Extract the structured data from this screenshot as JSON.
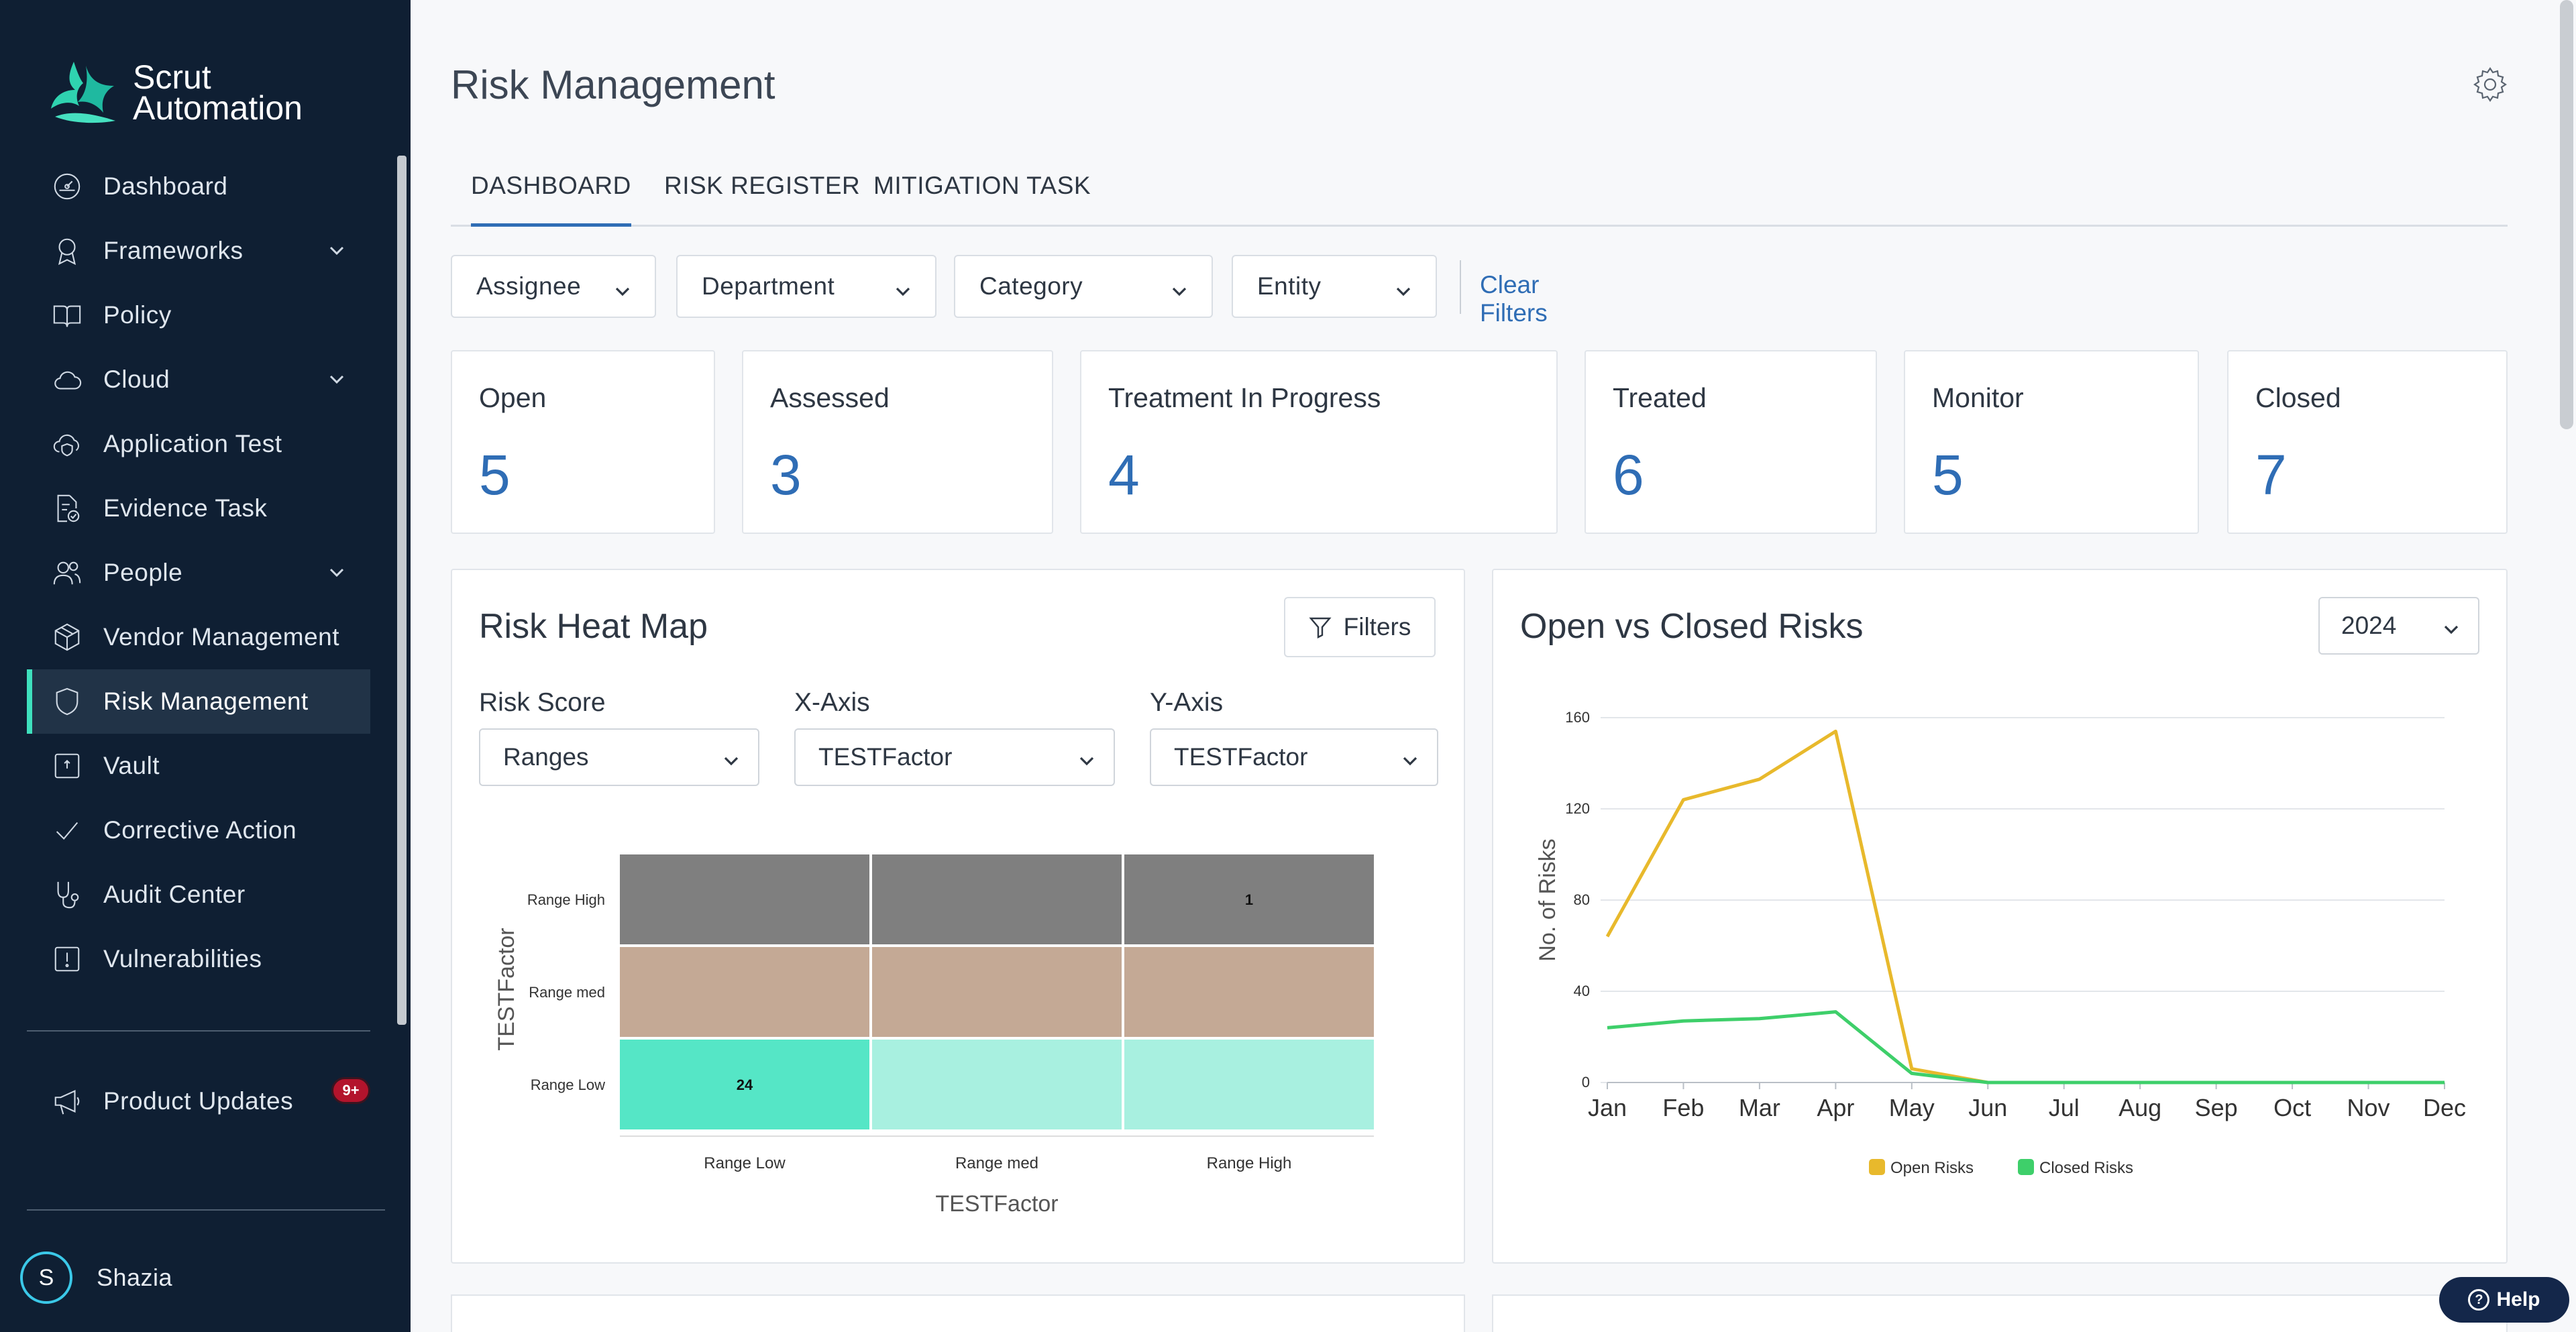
{
  "brand": {
    "line1": "Scrut",
    "line2": "Automation"
  },
  "sidebar": {
    "items": [
      {
        "label": "Dashboard",
        "icon": "dashboard-icon",
        "expandable": false,
        "active": false
      },
      {
        "label": "Frameworks",
        "icon": "award-icon",
        "expandable": true,
        "active": false
      },
      {
        "label": "Policy",
        "icon": "book-icon",
        "expandable": false,
        "active": false
      },
      {
        "label": "Cloud",
        "icon": "cloud-icon",
        "expandable": true,
        "active": false
      },
      {
        "label": "Application Test",
        "icon": "cloud-shield-icon",
        "expandable": false,
        "active": false
      },
      {
        "label": "Evidence Task",
        "icon": "file-check-icon",
        "expandable": false,
        "active": false
      },
      {
        "label": "People",
        "icon": "people-icon",
        "expandable": true,
        "active": false
      },
      {
        "label": "Vendor Management",
        "icon": "box-icon",
        "expandable": false,
        "active": false
      },
      {
        "label": "Risk Management",
        "icon": "shield-icon",
        "expandable": false,
        "active": true
      },
      {
        "label": "Vault",
        "icon": "vault-icon",
        "expandable": false,
        "active": false
      },
      {
        "label": "Corrective Action",
        "icon": "check-icon",
        "expandable": false,
        "active": false
      },
      {
        "label": "Audit Center",
        "icon": "stethoscope-icon",
        "expandable": false,
        "active": false
      },
      {
        "label": "Vulnerabilities",
        "icon": "alert-square-icon",
        "expandable": false,
        "active": false
      }
    ],
    "product_updates": {
      "label": "Product Updates",
      "badge": "9+"
    },
    "user": {
      "initial": "S",
      "name": "Shazia"
    }
  },
  "page": {
    "title": "Risk Management"
  },
  "tabs": [
    {
      "label": "DASHBOARD",
      "active": true
    },
    {
      "label": "RISK REGISTER",
      "active": false
    },
    {
      "label": "MITIGATION TASK",
      "active": false
    }
  ],
  "filters": {
    "assignee": "Assignee",
    "department": "Department",
    "category": "Category",
    "entity": "Entity",
    "clear": "Clear Filters"
  },
  "stats": [
    {
      "label": "Open",
      "value": "5"
    },
    {
      "label": "Assessed",
      "value": "3"
    },
    {
      "label": "Treatment In Progress",
      "value": "4"
    },
    {
      "label": "Treated",
      "value": "6"
    },
    {
      "label": "Monitor",
      "value": "5"
    },
    {
      "label": "Closed",
      "value": "7"
    }
  ],
  "heatmap": {
    "title": "Risk Heat Map",
    "filters_button": "Filters",
    "risk_score_label": "Risk Score",
    "risk_score_value": "Ranges",
    "x_axis_label": "X-Axis",
    "x_axis_value": "TESTFactor",
    "y_axis_label": "Y-Axis",
    "y_axis_value": "TESTFactor"
  },
  "line_chart": {
    "title": "Open vs Closed Risks",
    "year": "2024"
  },
  "chart_data": [
    {
      "type": "heatmap",
      "x_categories": [
        "Range Low",
        "Range med",
        "Range High"
      ],
      "y_categories": [
        "Range High",
        "Range med",
        "Range Low"
      ],
      "xlabel": "TESTFactor",
      "ylabel": "TESTFactor",
      "cells": [
        [
          null,
          null,
          1
        ],
        [
          null,
          null,
          null
        ],
        [
          24,
          null,
          null
        ]
      ],
      "row_colors": {
        "Range High": "#7f7f7f",
        "Range med": "#c4a995",
        "Range Low": "#a8f0e0",
        "highlight": "#55e6c6"
      }
    },
    {
      "type": "line",
      "categories": [
        "Jan",
        "Feb",
        "Mar",
        "Apr",
        "May",
        "Jun",
        "Jul",
        "Aug",
        "Sep",
        "Oct",
        "Nov",
        "Dec"
      ],
      "ylabel": "No. of Risks",
      "ylim": [
        0,
        160
      ],
      "yticks": [
        0,
        40,
        80,
        120,
        160
      ],
      "grid": true,
      "legend": "bottom",
      "series": [
        {
          "name": "Open Risks",
          "color": "#e8b92c",
          "values": [
            64,
            124,
            133,
            154,
            6,
            0,
            0,
            0,
            0,
            0,
            0,
            0
          ]
        },
        {
          "name": "Closed Risks",
          "color": "#3ecf6a",
          "values": [
            24,
            27,
            28,
            31,
            4,
            0,
            0,
            0,
            0,
            0,
            0,
            0
          ]
        }
      ]
    }
  ],
  "help": {
    "label": "Help"
  }
}
